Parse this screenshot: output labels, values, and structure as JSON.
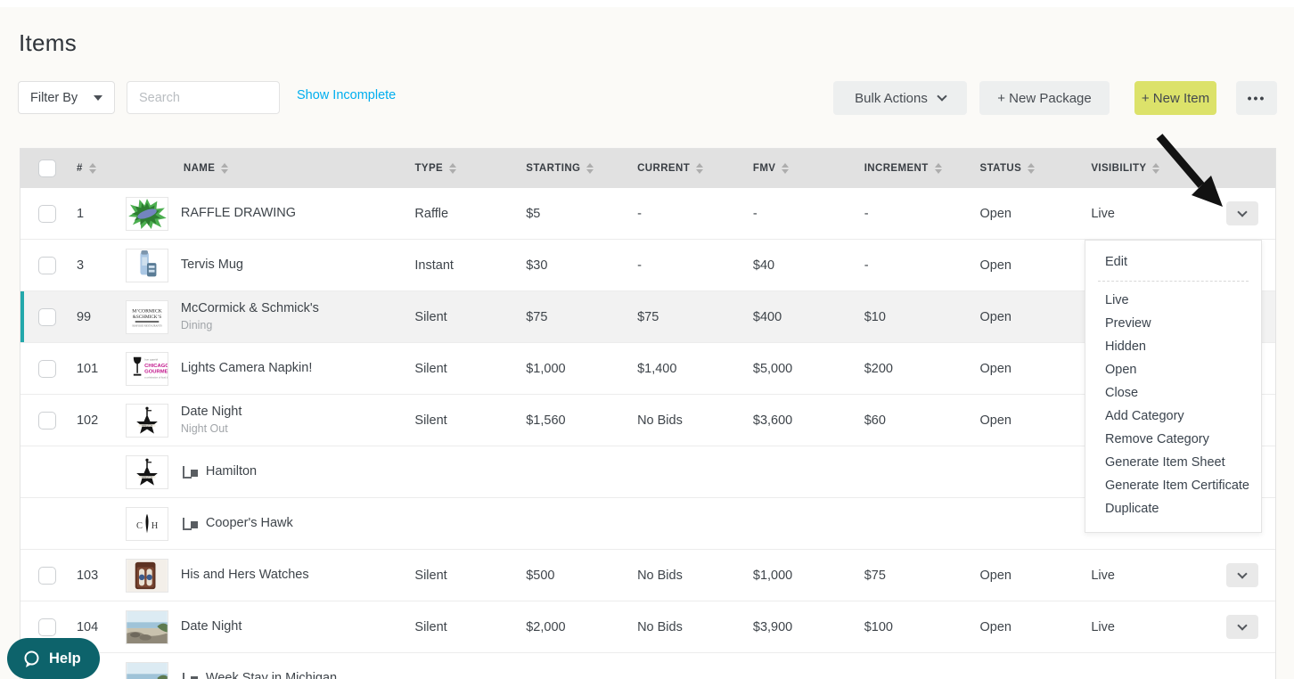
{
  "page": {
    "title": "Items"
  },
  "toolbar": {
    "filter_label": "Filter By",
    "search_placeholder": "Search",
    "show_incomplete": "Show Incomplete",
    "bulk_actions": "Bulk Actions",
    "new_package": "+ New Package",
    "new_item": "+ New Item",
    "more": "•••"
  },
  "table": {
    "columns": [
      "#",
      "NAME",
      "TYPE",
      "STARTING",
      "CURRENT",
      "FMV",
      "INCREMENT",
      "STATUS",
      "VISIBILITY"
    ],
    "rows": [
      {
        "num": "1",
        "thumb": "raffle-burst",
        "name": "RAFFLE DRAWING",
        "subtitle": "",
        "type": "Raffle",
        "starting": "$5",
        "current": "-",
        "fmv": "-",
        "increment": "-",
        "status": "Open",
        "visibility": "Live",
        "checkbox": true,
        "action": true,
        "child": false,
        "highlight": false
      },
      {
        "num": "3",
        "thumb": "tervis-mug",
        "name": "Tervis Mug",
        "subtitle": "",
        "type": "Instant",
        "starting": "$30",
        "current": "-",
        "fmv": "$40",
        "increment": "-",
        "status": "Open",
        "visibility": "",
        "checkbox": true,
        "action": false,
        "child": false,
        "highlight": false
      },
      {
        "num": "99",
        "thumb": "mccormick-logo",
        "name": "McCormick & Schmick's",
        "subtitle": "Dining",
        "type": "Silent",
        "starting": "$75",
        "current": "$75",
        "fmv": "$400",
        "increment": "$10",
        "status": "Open",
        "visibility": "",
        "checkbox": true,
        "action": false,
        "child": false,
        "highlight": true
      },
      {
        "num": "101",
        "thumb": "chicago-gourmet-logo",
        "name": "Lights Camera Napkin!",
        "subtitle": "",
        "type": "Silent",
        "starting": "$1,000",
        "current": "$1,400",
        "fmv": "$5,000",
        "increment": "$200",
        "status": "Open",
        "visibility": "",
        "checkbox": true,
        "action": false,
        "child": false,
        "highlight": false
      },
      {
        "num": "102",
        "thumb": "hamilton-logo",
        "name": "Date Night",
        "subtitle": "Night Out",
        "type": "Silent",
        "starting": "$1,560",
        "current": "No Bids",
        "fmv": "$3,600",
        "increment": "$60",
        "status": "Open",
        "visibility": "",
        "checkbox": true,
        "action": false,
        "child": false,
        "highlight": false
      },
      {
        "num": "",
        "thumb": "hamilton-logo",
        "name": "Hamilton",
        "subtitle": "",
        "type": "",
        "starting": "",
        "current": "",
        "fmv": "",
        "increment": "",
        "status": "",
        "visibility": "",
        "checkbox": false,
        "action": false,
        "child": true,
        "highlight": false
      },
      {
        "num": "",
        "thumb": "coopers-hawk-logo",
        "name": "Cooper's Hawk",
        "subtitle": "",
        "type": "",
        "starting": "",
        "current": "",
        "fmv": "",
        "increment": "",
        "status": "",
        "visibility": "",
        "checkbox": false,
        "action": false,
        "child": true,
        "highlight": false
      },
      {
        "num": "103",
        "thumb": "watch-box-photo",
        "name": "His and Hers Watches",
        "subtitle": "",
        "type": "Silent",
        "starting": "$500",
        "current": "No Bids",
        "fmv": "$1,000",
        "increment": "$75",
        "status": "Open",
        "visibility": "Live",
        "checkbox": true,
        "action": true,
        "child": false,
        "highlight": false
      },
      {
        "num": "104",
        "thumb": "beach-photo",
        "name": "Date Night",
        "subtitle": "",
        "type": "Silent",
        "starting": "$2,000",
        "current": "No Bids",
        "fmv": "$3,900",
        "increment": "$100",
        "status": "Open",
        "visibility": "Live",
        "checkbox": true,
        "action": true,
        "child": false,
        "highlight": false
      },
      {
        "num": "",
        "thumb": "beach-photo",
        "name": "Week Stay in Michigan",
        "subtitle": "",
        "type": "",
        "starting": "",
        "current": "",
        "fmv": "",
        "increment": "",
        "status": "",
        "visibility": "",
        "checkbox": false,
        "action": false,
        "child": true,
        "highlight": false
      }
    ]
  },
  "menu": {
    "primary": "Edit",
    "items": [
      "Live",
      "Preview",
      "Hidden",
      "Open",
      "Close",
      "Add Category",
      "Remove Category",
      "Generate Item Sheet",
      "Generate Item Certificate",
      "Duplicate"
    ]
  },
  "help": {
    "label": "Help"
  },
  "colors": {
    "accent_teal": "#23a8ab",
    "link_cyan": "#00aeef",
    "new_item_yellow": "#dce26a",
    "help_teal": "#0d636b",
    "header_gray": "#e1e1e1"
  }
}
